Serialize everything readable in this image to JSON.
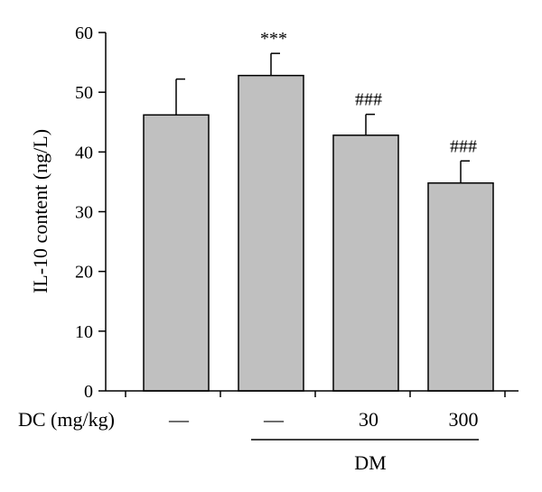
{
  "chart_data": {
    "type": "bar",
    "title": "",
    "ylabel": "IL-10 content (ng/L)",
    "xlabel": "",
    "ylim": [
      0,
      60
    ],
    "yticks": [
      0,
      10,
      20,
      30,
      40,
      50,
      60
    ],
    "grid": false,
    "bar_color": "#c0c0c0",
    "bars": [
      {
        "value": 46.2,
        "error": 6.0,
        "annotation": "",
        "dc_label": "—"
      },
      {
        "value": 52.8,
        "error": 3.7,
        "annotation": "***",
        "dc_label": "—"
      },
      {
        "value": 42.8,
        "error": 3.5,
        "annotation": "###",
        "dc_label": "30"
      },
      {
        "value": 34.8,
        "error": 3.7,
        "annotation": "###",
        "dc_label": "300"
      }
    ],
    "condition_row_label": "DC (mg/kg)",
    "group_label": "DM"
  }
}
